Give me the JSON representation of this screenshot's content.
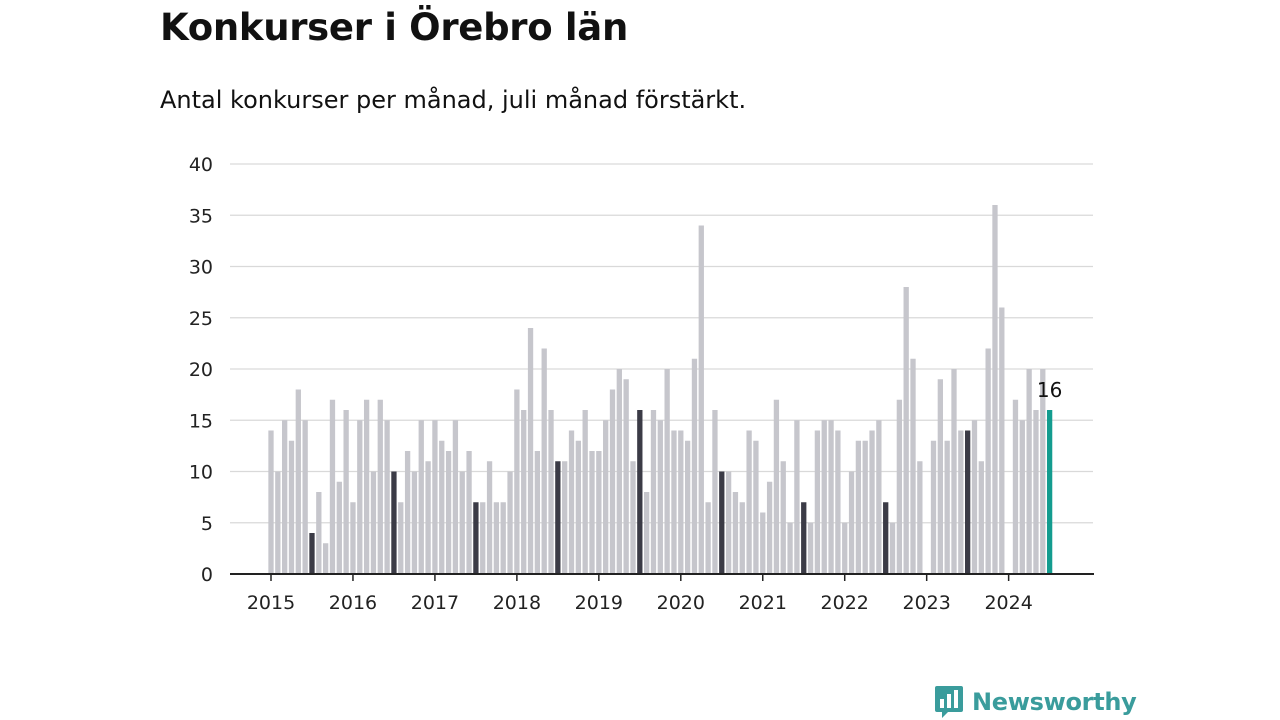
{
  "title": "Konkurser i Örebro län",
  "subtitle": "Antal konkurser per månad, juli månad förstärkt.",
  "brand": {
    "name": "Newsworthy",
    "icon": "newsworthy-logo-icon",
    "color": "#3a9c9c"
  },
  "colors": {
    "bar": "#c6c6cc",
    "highlight": "#3b3b46",
    "current": "#139c8f",
    "grid": "#d9d9d9",
    "axis": "#222222"
  },
  "chart_data": {
    "type": "bar",
    "ylim": [
      0,
      40
    ],
    "yticks": [
      0,
      5,
      10,
      15,
      20,
      25,
      30,
      35,
      40
    ],
    "grid": true,
    "x_tick_labels": [
      "2015",
      "2016",
      "2017",
      "2018",
      "2019",
      "2020",
      "2021",
      "2022",
      "2023",
      "2024"
    ],
    "start": "2015-01",
    "highlight_month": "juli",
    "annotation": {
      "month": "2024-07",
      "value": 16,
      "label": "16"
    },
    "series": [
      {
        "year": "2015",
        "values": [
          14,
          10,
          15,
          13,
          18,
          15,
          4,
          8,
          3,
          17,
          9,
          16
        ]
      },
      {
        "year": "2016",
        "values": [
          7,
          15,
          17,
          10,
          17,
          15,
          10,
          7,
          12,
          10,
          15,
          11
        ]
      },
      {
        "year": "2017",
        "values": [
          15,
          13,
          12,
          15,
          10,
          12,
          7,
          7,
          11,
          7,
          7,
          10
        ]
      },
      {
        "year": "2018",
        "values": [
          18,
          16,
          24,
          12,
          22,
          16,
          11,
          11,
          14,
          13,
          16,
          12
        ]
      },
      {
        "year": "2019",
        "values": [
          12,
          15,
          18,
          20,
          19,
          11,
          16,
          8,
          16,
          15,
          20,
          14
        ]
      },
      {
        "year": "2020",
        "values": [
          14,
          13,
          21,
          34,
          7,
          16,
          10,
          10,
          8,
          7,
          14,
          13
        ]
      },
      {
        "year": "2021",
        "values": [
          6,
          9,
          17,
          11,
          5,
          15,
          7,
          5,
          14,
          15,
          15,
          14
        ]
      },
      {
        "year": "2022",
        "values": [
          5,
          10,
          13,
          13,
          14,
          15,
          7,
          5,
          17,
          28,
          21,
          11
        ]
      },
      {
        "year": "2023",
        "values": [
          0,
          13,
          19,
          13,
          20,
          14,
          14,
          15,
          11,
          22,
          36,
          26
        ]
      },
      {
        "year": "2024",
        "values": [
          0,
          17,
          15,
          20,
          16,
          20,
          16
        ]
      }
    ]
  }
}
